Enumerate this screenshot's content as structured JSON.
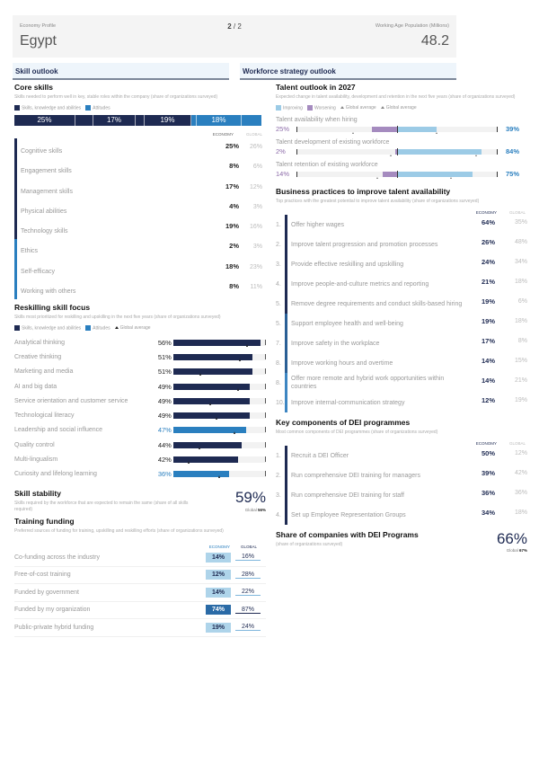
{
  "header": {
    "profile_label": "Economy Profile",
    "country": "Egypt",
    "page_current": "2",
    "page_sep": " / 2",
    "pop_label": "Working Age Population (Millions)",
    "pop_value": "48.2"
  },
  "sections": {
    "left": "Skill outlook",
    "right": "Workforce strategy outlook"
  },
  "colors": {
    "navy": "#1e2a52",
    "blue": "#2a7fbf",
    "light_blue": "#9ccbe6",
    "purple": "#a58bbf"
  },
  "core_skills": {
    "title": "Core skills",
    "subtitle": "Skills needed to perform well in key, stable roles within the company (share of organizations surveyed)",
    "legend": [
      "Skills, knowledge and abilities",
      "Attitudes"
    ],
    "stack_labels": [
      "25%",
      "17%",
      "19%",
      "18%"
    ],
    "col_economy": "ECONOMY",
    "col_global": "GLOBAL",
    "rows": [
      {
        "label": "Cognitive skills",
        "economy": "25%",
        "global": "26%",
        "type": "ska"
      },
      {
        "label": "Engagement skills",
        "economy": "8%",
        "global": "6%",
        "type": "ska"
      },
      {
        "label": "Management skills",
        "economy": "17%",
        "global": "12%",
        "type": "ska"
      },
      {
        "label": "Physical abilities",
        "economy": "4%",
        "global": "3%",
        "type": "ska"
      },
      {
        "label": "Technology skills",
        "economy": "19%",
        "global": "16%",
        "type": "ska"
      },
      {
        "label": "Ethics",
        "economy": "2%",
        "global": "3%",
        "type": "att"
      },
      {
        "label": "Self-efficacy",
        "economy": "18%",
        "global": "23%",
        "type": "att"
      },
      {
        "label": "Working with others",
        "economy": "8%",
        "global": "11%",
        "type": "att"
      }
    ]
  },
  "reskilling": {
    "title": "Reskilling skill focus",
    "subtitle": "Skills most prioritized for reskilling and upskilling in the next five years (share of organizations surveyed)",
    "legend": [
      "Skills, knowledge and abilities",
      "Attitudes",
      "Global average"
    ],
    "rows": [
      {
        "label": "Analytical thinking",
        "value": "56%",
        "pct": 56,
        "global": 48,
        "type": "ska"
      },
      {
        "label": "Creative thinking",
        "value": "51%",
        "pct": 51,
        "global": 43,
        "type": "ska"
      },
      {
        "label": "Marketing and media",
        "value": "51%",
        "pct": 51,
        "global": 18,
        "type": "ska"
      },
      {
        "label": "AI and big data",
        "value": "49%",
        "pct": 49,
        "global": 42,
        "type": "ska"
      },
      {
        "label": "Service orientation and customer service",
        "value": "49%",
        "pct": 49,
        "global": 24,
        "type": "ska"
      },
      {
        "label": "Technological literacy",
        "value": "49%",
        "pct": 49,
        "global": 28,
        "type": "ska"
      },
      {
        "label": "Leadership and social influence",
        "value": "47%",
        "pct": 47,
        "global": 40,
        "type": "att"
      },
      {
        "label": "Quality control",
        "value": "44%",
        "pct": 44,
        "global": 17,
        "type": "ska"
      },
      {
        "label": "Multi-lingualism",
        "value": "42%",
        "pct": 42,
        "global": 10,
        "type": "ska"
      },
      {
        "label": "Curiosity and lifelong learning",
        "value": "36%",
        "pct": 36,
        "global": 30,
        "type": "att"
      }
    ]
  },
  "skill_stability": {
    "title": "Skill stability",
    "subtitle": "Skills required by the workforce that are expected to remain the same (share of all skills required)",
    "value": "59%",
    "global_label": "Global",
    "global_value": "56%"
  },
  "training_funding": {
    "title": "Training funding",
    "subtitle": "Preferred sources of funding for training, upskilling and reskilling efforts (share of organizations surveyed)",
    "col_economy": "ECONOMY",
    "col_global": "GLOBAL",
    "rows": [
      {
        "label": "Co-funding across the industry",
        "economy": "14%",
        "global": "16%"
      },
      {
        "label": "Free-of-cost training",
        "economy": "12%",
        "global": "28%"
      },
      {
        "label": "Funded by government",
        "economy": "14%",
        "global": "22%"
      },
      {
        "label": "Funded by my organization",
        "economy": "74%",
        "global": "87%",
        "dark": true
      },
      {
        "label": "Public-private hybrid funding",
        "economy": "19%",
        "global": "24%"
      }
    ]
  },
  "talent_outlook": {
    "title": "Talent outlook in 2027",
    "subtitle": "Expected change in talent availability, development and retention in the next five years (share of organizations surveyed)",
    "legend": [
      "Improving",
      "Worsening",
      "Global average",
      "Global average"
    ],
    "items": [
      {
        "label": "Talent availability when hiring",
        "worsening": "25%",
        "improving": "39%",
        "w": 25,
        "i": 39,
        "gw": 43,
        "gi": 40
      },
      {
        "label": "Talent development of existing workforce",
        "worsening": "2%",
        "improving": "84%",
        "w": 2,
        "i": 84,
        "gw": 6,
        "gi": 79
      },
      {
        "label": "Talent retention of existing workforce",
        "worsening": "14%",
        "improving": "75%",
        "w": 14,
        "i": 75,
        "gw": 19,
        "gi": 54
      }
    ]
  },
  "business_practices": {
    "title": "Business practices to improve talent availability",
    "subtitle": "Top practices with the greatest potential to improve talent availability (share of organizations surveyed)",
    "col_economy": "ECONOMY",
    "col_global": "GLOBAL",
    "rows": [
      {
        "num": "1.",
        "label": "Offer higher wages",
        "economy": "64%",
        "global": "35%"
      },
      {
        "num": "2.",
        "label": "Improve talent progression and promotion processes",
        "economy": "26%",
        "global": "48%"
      },
      {
        "num": "3.",
        "label": "Provide effective reskilling and upskilling",
        "economy": "24%",
        "global": "34%"
      },
      {
        "num": "4.",
        "label": "Improve people-and-culture metrics and reporting",
        "economy": "21%",
        "global": "18%"
      },
      {
        "num": "5.",
        "label": "Remove degree requirements and conduct skills-based hiring",
        "economy": "19%",
        "global": "6%"
      },
      {
        "num": "5.",
        "label": "Support employee health and well-being",
        "economy": "19%",
        "global": "18%"
      },
      {
        "num": "7.",
        "label": "Improve safety in the workplace",
        "economy": "17%",
        "global": "8%"
      },
      {
        "num": "8.",
        "label": "Improve working hours and overtime",
        "economy": "14%",
        "global": "15%"
      },
      {
        "num": "8.",
        "label": "Offer more remote and hybrid work opportunities within countries",
        "economy": "14%",
        "global": "21%"
      },
      {
        "num": "10.",
        "label": "Improve internal-communication strategy",
        "economy": "12%",
        "global": "19%"
      }
    ]
  },
  "dei": {
    "title": "Key components of DEI programmes",
    "subtitle": "Most common components of DEI programmes (share of organizations surveyed)",
    "col_economy": "ECONOMY",
    "col_global": "GLOBAL",
    "rows": [
      {
        "num": "1.",
        "label": "Recruit a DEI Officer",
        "economy": "50%",
        "global": "12%"
      },
      {
        "num": "2.",
        "label": "Run comprehensive DEI training for managers",
        "economy": "39%",
        "global": "42%"
      },
      {
        "num": "3.",
        "label": "Run comprehensive DEI training for staff",
        "economy": "36%",
        "global": "36%"
      },
      {
        "num": "4.",
        "label": "Set up Employee Representation Groups",
        "economy": "34%",
        "global": "18%"
      }
    ]
  },
  "dei_share": {
    "title": "Share of companies with DEI Programs",
    "subtitle": "(share of organizations surveyed)",
    "value": "66%",
    "global_label": "Global",
    "global_value": "67%"
  }
}
